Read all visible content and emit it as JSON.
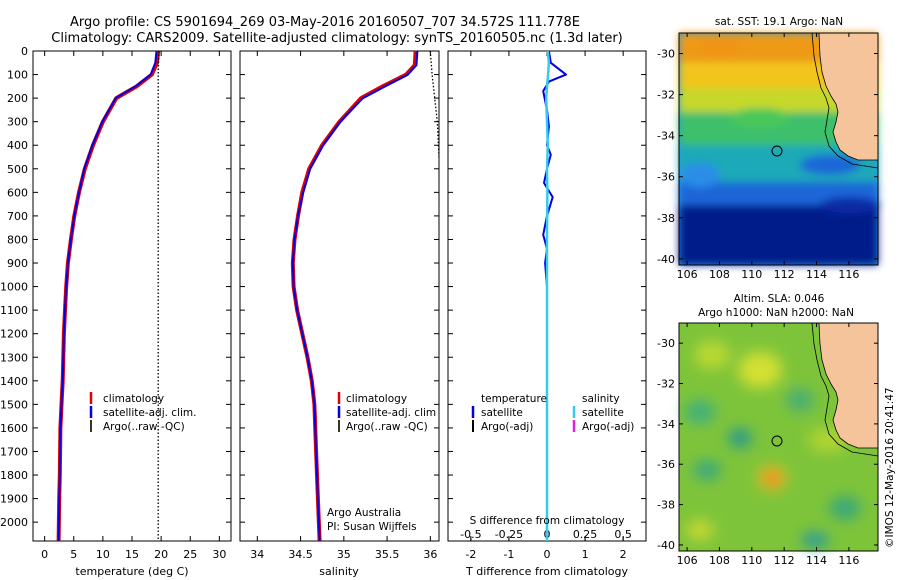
{
  "header": {
    "line1": "Argo profile: CS 5901694_269 03-May-2016 20160507_707 34.572S 111.778E",
    "line2": "Climatology: CARS2009. Satellite-adjusted climatology: synTS_20160505.nc (1.3d later)"
  },
  "depth_ticks": [
    "0",
    "100",
    "200",
    "300",
    "400",
    "500",
    "600",
    "700",
    "800",
    "900",
    "1000",
    "1100",
    "1200",
    "1300",
    "1400",
    "1500",
    "1600",
    "1700",
    "1800",
    "1900",
    "2000"
  ],
  "panel_temperature": {
    "xlabel": "temperature (deg C)",
    "xticks": [
      "0",
      "5",
      "10",
      "15",
      "20",
      "25",
      "30"
    ],
    "legend": [
      "climatology",
      "satellite-adj. clim.",
      "Argo(..raw -QC)"
    ]
  },
  "panel_salinity": {
    "xlabel": "salinity",
    "xticks": [
      "34",
      "34.5",
      "35",
      "35.5",
      "36"
    ],
    "legend": [
      "climatology",
      "satellite-adj. clim",
      "Argo(..raw -QC)"
    ],
    "credit1": "Argo Australia",
    "credit2": "PI: Susan Wijffels"
  },
  "panel_difference": {
    "xlabel": "T difference from climatology",
    "s_label": "S difference from climatology",
    "xticks_T": [
      "-2",
      "-1",
      "0",
      "1",
      "2"
    ],
    "xticks_S": [
      "-0.5",
      "-0.25",
      "0",
      "0.25",
      "0.5"
    ],
    "legend_T_title": "temperature",
    "legend_S_title": "salinity",
    "legend_T": [
      "satellite",
      "Argo(-adj)"
    ],
    "legend_S": [
      "satellite",
      "Argo(-adj)"
    ]
  },
  "map_sst": {
    "title": "sat. SST: 19.1  Argo: NaN",
    "yticks": [
      "-30",
      "-32",
      "-34",
      "-36",
      "-38",
      "-40"
    ],
    "xticks": [
      "106",
      "108",
      "110",
      "112",
      "114",
      "116"
    ]
  },
  "map_sla": {
    "title1": "Altim. SLA: 0.046",
    "title2": "Argo h1000: NaN h2000: NaN",
    "yticks": [
      "-30",
      "-32",
      "-34",
      "-36",
      "-38",
      "-40"
    ],
    "xticks": [
      "106",
      "108",
      "110",
      "112",
      "114",
      "116"
    ]
  },
  "footer": {
    "stamp": "©IMOS 12-May-2016 20:41:47"
  },
  "colors": {
    "climatology": "#e00000",
    "satellite": "#0000e6",
    "argo": "#000000",
    "salinity_satellite": "#33ccee",
    "salinity_argo": "#dd22dd",
    "land": "#f5c49a"
  },
  "chart_data": [
    {
      "type": "line",
      "title": "",
      "xlabel": "temperature (deg C)",
      "ylabel": "",
      "xlim": [
        -2,
        32
      ],
      "ylim": [
        2080,
        0
      ],
      "series": [
        {
          "name": "climatology",
          "x": [
            19.5,
            19.3,
            18.4,
            15.8,
            12.3,
            10.0,
            8.3,
            6.9,
            5.9,
            5.1,
            4.5,
            4.0,
            3.7,
            3.5,
            3.3,
            3.1,
            2.9,
            2.7,
            2.6,
            2.5,
            2.4
          ],
          "y": [
            0,
            50,
            100,
            150,
            200,
            300,
            400,
            500,
            600,
            700,
            800,
            900,
            1000,
            1100,
            1200,
            1400,
            1500,
            1600,
            1800,
            1900,
            2080
          ]
        },
        {
          "name": "satellite-adj. clim.",
          "x": [
            19.2,
            19.0,
            18.2,
            15.6,
            12.2,
            9.9,
            8.2,
            6.8,
            5.9,
            5.1,
            4.5,
            4.0,
            3.7,
            3.5,
            3.3,
            3.1,
            2.9,
            2.7,
            2.6,
            2.5,
            2.4
          ],
          "y": [
            0,
            50,
            100,
            150,
            200,
            300,
            400,
            500,
            600,
            700,
            800,
            900,
            1000,
            1100,
            1200,
            1400,
            1500,
            1600,
            1800,
            1900,
            2080
          ]
        },
        {
          "name": "Argo(..raw -QC)",
          "x": [
            19.6,
            19.5,
            19.5,
            19.5,
            19.5,
            19.5,
            19.5,
            19.5,
            19.5,
            19.5,
            19.5,
            19.5,
            19.5,
            19.5,
            19.5,
            19.5,
            19.5,
            19.5,
            19.5,
            19.5,
            19.5
          ],
          "y": [
            0,
            100,
            200,
            300,
            400,
            500,
            600,
            700,
            800,
            900,
            1000,
            1100,
            1200,
            1300,
            1400,
            1500,
            1600,
            1700,
            1800,
            1900,
            2080
          ]
        }
      ]
    },
    {
      "type": "line",
      "title": "",
      "xlabel": "salinity",
      "ylabel": "",
      "xlim": [
        33.8,
        36.1
      ],
      "ylim": [
        2080,
        0
      ],
      "series": [
        {
          "name": "climatology",
          "x": [
            35.83,
            35.82,
            35.72,
            35.45,
            35.2,
            34.95,
            34.75,
            34.6,
            34.52,
            34.47,
            34.43,
            34.41,
            34.42,
            34.46,
            34.52,
            34.58,
            34.63,
            34.66,
            34.68,
            34.7,
            34.72
          ],
          "y": [
            0,
            60,
            100,
            150,
            200,
            300,
            400,
            500,
            600,
            700,
            800,
            900,
            1000,
            1100,
            1200,
            1300,
            1400,
            1500,
            1700,
            1900,
            2080
          ]
        },
        {
          "name": "satellite-adj. clim",
          "x": [
            35.85,
            35.84,
            35.74,
            35.48,
            35.22,
            34.96,
            34.76,
            34.61,
            34.53,
            34.47,
            34.43,
            34.41,
            34.42,
            34.46,
            34.52,
            34.58,
            34.63,
            34.66,
            34.68,
            34.7,
            34.72
          ],
          "y": [
            0,
            60,
            100,
            150,
            200,
            300,
            400,
            500,
            600,
            700,
            800,
            900,
            1000,
            1100,
            1200,
            1300,
            1400,
            1500,
            1700,
            1900,
            2080
          ]
        },
        {
          "name": "Argo(..raw -QC)",
          "x": [
            36.0,
            36.02,
            36.05,
            36.08,
            36.1
          ],
          "y": [
            0,
            100,
            200,
            300,
            450
          ]
        }
      ]
    },
    {
      "type": "line",
      "title": "",
      "xlabel": "T difference from climatology",
      "ylabel": "",
      "xlim": [
        -2.6,
        2.6
      ],
      "ylim": [
        2080,
        0
      ],
      "series": [
        {
          "name": "satellite",
          "x": [
            0.05,
            0.1,
            0.5,
            0.05,
            -0.1,
            0.0,
            0.05,
            0.0,
            0.1,
            0.0,
            -0.08,
            0.15,
            0.0,
            -0.1,
            0.0,
            -0.05,
            0.0,
            0.0,
            0.0,
            0.0,
            0.0
          ],
          "y": [
            0,
            50,
            100,
            130,
            170,
            250,
            320,
            400,
            440,
            500,
            560,
            620,
            700,
            780,
            840,
            900,
            1000,
            1200,
            1500,
            1800,
            2080
          ]
        },
        {
          "name": "satellite (salinity)",
          "x": [
            0.02,
            0.05,
            0.03,
            0.0,
            -0.02,
            0.0,
            0.02,
            0.0,
            0.01,
            0.0,
            0.0,
            0.0,
            0.0
          ],
          "y": [
            0,
            50,
            100,
            150,
            200,
            300,
            400,
            500,
            600,
            800,
            1200,
            1600,
            2080
          ]
        }
      ]
    }
  ]
}
